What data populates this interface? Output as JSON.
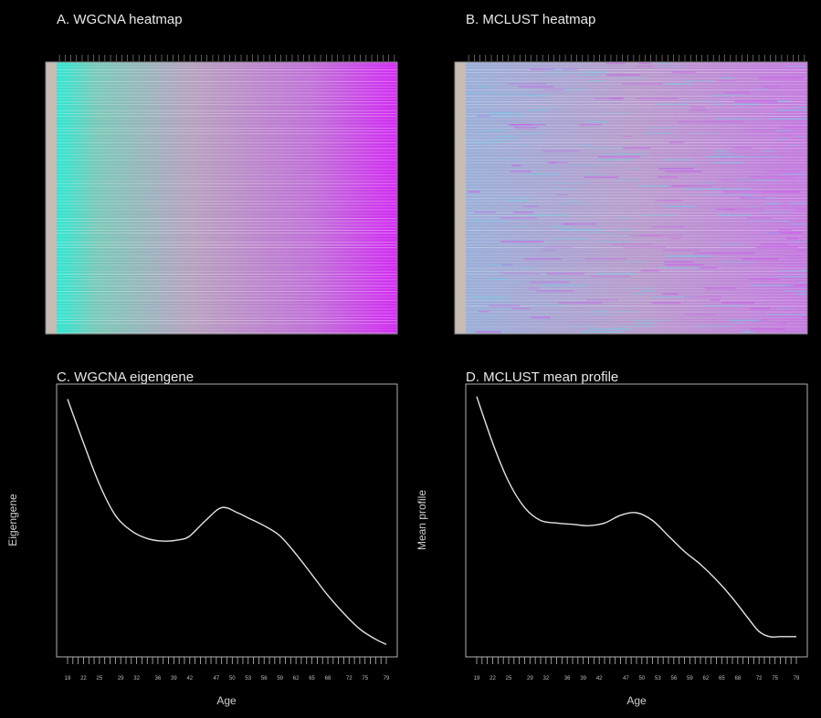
{
  "colors": {
    "background": "#000000",
    "foreground": "#d8d8d8",
    "heat_low": "#38e0d0",
    "heat_mid": "#b090b0",
    "heat_high": "#d030f0",
    "sidebar": "#c8bcb4"
  },
  "chart_data": [
    {
      "panel": "A",
      "type": "heatmap",
      "title": "A. WGCNA heatmap",
      "gradient": "left-to-right cyan to magenta",
      "color_low": "#38e0d0",
      "color_high": "#d030f0"
    },
    {
      "panel": "B",
      "type": "heatmap",
      "title": "B. MCLUST heatmap",
      "gradient": "mixed mauve with sparse cyan",
      "color_low": "#6cc8e0",
      "color_high": "#d040f0"
    },
    {
      "panel": "C",
      "type": "line",
      "title": "C. WGCNA eigengene",
      "xlabel": "Age",
      "ylabel": "Eigengene",
      "xlim": [
        19,
        79
      ],
      "ylim": [
        0,
        100
      ],
      "x_ticks": [
        19,
        22,
        25,
        29,
        32,
        36,
        39,
        42,
        47,
        50,
        53,
        56,
        59,
        62,
        65,
        68,
        72,
        75,
        79
      ],
      "x": [
        19,
        22,
        25,
        28,
        31,
        34,
        37,
        40,
        42,
        45,
        48,
        51,
        53,
        56,
        59,
        62,
        65,
        68,
        71,
        74,
        77,
        79
      ],
      "y": [
        97,
        80,
        64,
        52,
        46,
        43,
        42,
        42.5,
        44,
        50,
        55,
        53,
        51,
        48,
        44,
        37,
        29,
        21,
        14,
        8,
        4,
        2
      ]
    },
    {
      "panel": "D",
      "type": "line",
      "title": "D. MCLUST mean profile",
      "xlabel": "Age",
      "ylabel": "Mean profile",
      "xlim": [
        19,
        79
      ],
      "ylim": [
        0,
        100
      ],
      "x_ticks": [
        19,
        22,
        25,
        29,
        32,
        36,
        39,
        42,
        47,
        50,
        53,
        56,
        59,
        62,
        65,
        68,
        72,
        75,
        79
      ],
      "x": [
        19,
        22,
        25,
        28,
        31,
        34,
        37,
        40,
        43,
        46,
        49,
        52,
        55,
        58,
        61,
        64,
        67,
        70,
        72,
        74,
        76,
        79
      ],
      "y": [
        98,
        80,
        65,
        55,
        50,
        49,
        48.5,
        48,
        49,
        52,
        53,
        50,
        44,
        38,
        33,
        27,
        20,
        12,
        7,
        5,
        5,
        5
      ]
    }
  ]
}
